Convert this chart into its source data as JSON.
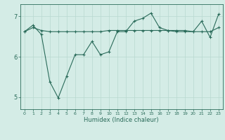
{
  "title": "",
  "xlabel": "Humidex (Indice chaleur)",
  "ylabel": "",
  "bg_color": "#d4ece6",
  "line_color": "#2a6b5a",
  "grid_color": "#b8d8d0",
  "xlim": [
    -0.5,
    23.5
  ],
  "ylim": [
    4.7,
    7.3
  ],
  "xticks": [
    0,
    1,
    2,
    3,
    4,
    5,
    6,
    7,
    8,
    9,
    10,
    11,
    12,
    13,
    14,
    15,
    16,
    17,
    18,
    19,
    20,
    21,
    22,
    23
  ],
  "yticks": [
    5,
    6,
    7
  ],
  "line1_x": [
    0,
    1,
    2,
    3,
    4,
    5,
    6,
    7,
    8,
    9,
    10,
    11,
    12,
    13,
    14,
    15,
    16,
    17,
    18,
    19,
    20,
    21,
    22,
    23
  ],
  "line1_y": [
    6.62,
    6.72,
    6.65,
    6.62,
    6.62,
    6.62,
    6.62,
    6.62,
    6.62,
    6.62,
    6.65,
    6.65,
    6.65,
    6.65,
    6.65,
    6.65,
    6.65,
    6.65,
    6.65,
    6.65,
    6.62,
    6.62,
    6.62,
    6.72
  ],
  "line2_x": [
    0,
    1,
    2,
    3,
    4,
    5,
    6,
    7,
    8,
    9,
    10,
    11,
    12,
    13,
    14,
    15,
    16,
    17,
    18,
    19,
    20,
    21,
    22,
    23
  ],
  "line2_y": [
    6.62,
    6.78,
    6.55,
    5.38,
    4.98,
    5.52,
    6.05,
    6.05,
    6.38,
    6.05,
    6.12,
    6.62,
    6.62,
    6.88,
    6.95,
    7.08,
    6.72,
    6.65,
    6.62,
    6.62,
    6.62,
    6.88,
    6.48,
    7.05
  ]
}
